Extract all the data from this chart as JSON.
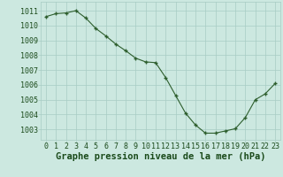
{
  "x": [
    0,
    1,
    2,
    3,
    4,
    5,
    6,
    7,
    8,
    9,
    10,
    11,
    12,
    13,
    14,
    15,
    16,
    17,
    18,
    19,
    20,
    21,
    22,
    23
  ],
  "y": [
    1010.6,
    1010.8,
    1010.85,
    1011.0,
    1010.5,
    1009.8,
    1009.3,
    1008.75,
    1008.3,
    1007.8,
    1007.55,
    1007.5,
    1006.5,
    1005.3,
    1004.1,
    1003.3,
    1002.75,
    1002.75,
    1002.9,
    1003.05,
    1003.8,
    1005.0,
    1005.4,
    1006.1
  ],
  "line_color": "#2d5e2d",
  "marker": "+",
  "bg_color": "#cce8e0",
  "grid_color": "#a8ccc4",
  "ylabel_ticks": [
    1003,
    1004,
    1005,
    1006,
    1007,
    1008,
    1009,
    1010,
    1011
  ],
  "xlabel": "Graphe pression niveau de la mer (hPa)",
  "xlim": [
    -0.5,
    23.5
  ],
  "ylim": [
    1002.3,
    1011.6
  ],
  "label_color": "#1a4a1a",
  "xlabel_fontsize": 7.5,
  "tick_fontsize": 6.0
}
